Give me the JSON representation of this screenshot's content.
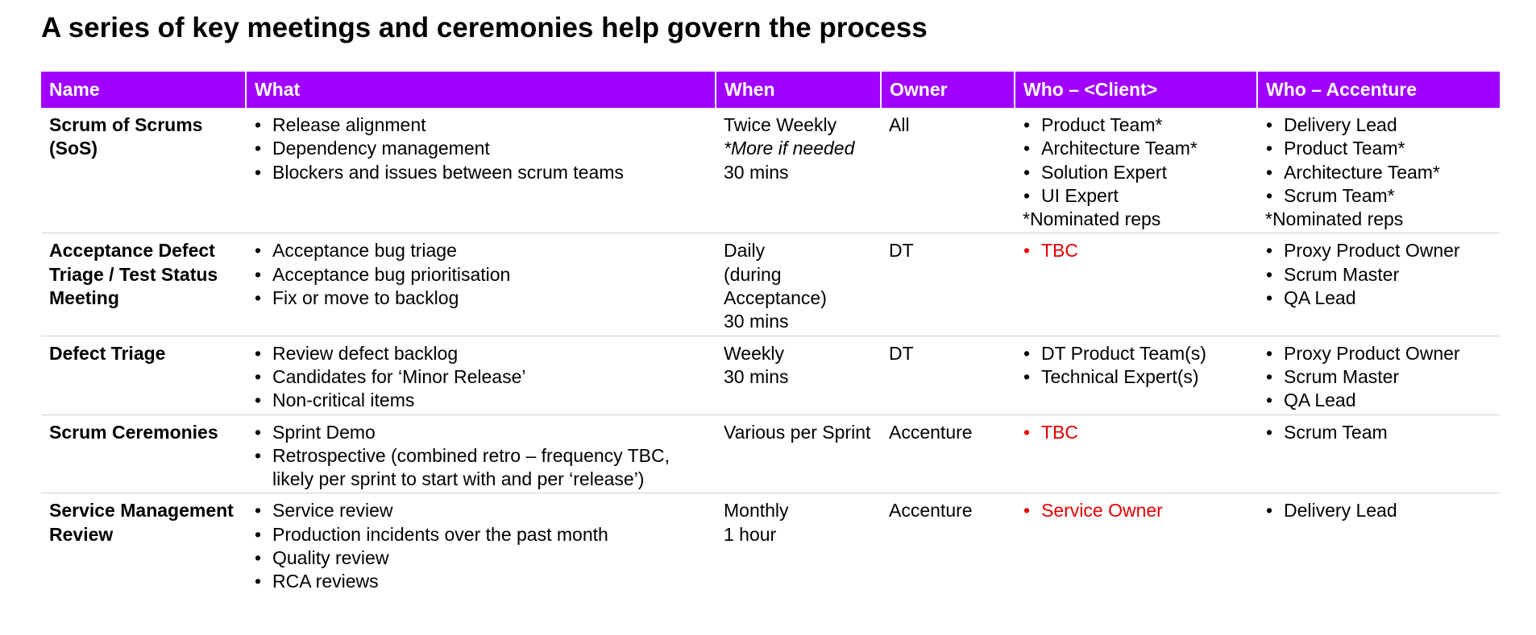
{
  "title": "A series of key meetings and ceremonies help govern the process",
  "colors": {
    "header_bg": "#a100ff",
    "header_text": "#ffffff",
    "tbc_red": "#e60000",
    "row_divider": "#d0d0d0"
  },
  "table": {
    "headers": {
      "name": "Name",
      "what": "What",
      "when": "When",
      "owner": "Owner",
      "who_client": "Who – <Client>",
      "who_accenture": "Who – Accenture"
    },
    "rows": [
      {
        "name": "Scrum of Scrums (SoS)",
        "what": [
          "Release alignment",
          "Dependency management",
          "Blockers and issues between scrum teams"
        ],
        "when": {
          "line1": "Twice Weekly",
          "italic": "*More if needed",
          "line2": "30 mins"
        },
        "owner": "All",
        "who_client": [
          "Product Team*",
          "Architecture Team*",
          "Solution Expert",
          "UI Expert"
        ],
        "who_client_note": "*Nominated reps",
        "who_accenture": [
          "Delivery Lead",
          "Product Team*",
          "Architecture Team*",
          "Scrum Team*"
        ],
        "who_accenture_note": "*Nominated reps"
      },
      {
        "name": "Acceptance Defect Triage / Test Status Meeting",
        "what": [
          "Acceptance bug triage",
          "Acceptance bug prioritisation",
          "Fix or move to backlog"
        ],
        "when": {
          "line1": "Daily",
          "line2": "(during Acceptance)",
          "line3": "30 mins"
        },
        "owner": "DT",
        "who_client": [
          "TBC"
        ],
        "who_accenture": [
          "Proxy Product Owner",
          "Scrum Master",
          "QA Lead"
        ]
      },
      {
        "name": "Defect Triage",
        "what": [
          "Review defect backlog",
          "Candidates for ‘Minor Release’",
          "Non-critical items"
        ],
        "when": {
          "line1": "Weekly",
          "line2": "30 mins"
        },
        "owner": "DT",
        "who_client": [
          "DT Product Team(s)",
          "Technical Expert(s)"
        ],
        "who_accenture": [
          "Proxy Product Owner",
          "Scrum Master",
          "QA Lead"
        ]
      },
      {
        "name": "Scrum Ceremonies",
        "what": [
          "Sprint Demo",
          "Retrospective (combined retro – frequency TBC, likely per sprint to start with and per ‘release’)"
        ],
        "when": {
          "line1": "Various per Sprint"
        },
        "owner": "Accenture",
        "who_client": [
          "TBC"
        ],
        "who_accenture": [
          "Scrum Team"
        ]
      },
      {
        "name": "Service Management Review",
        "what": [
          "Service review",
          "Production incidents over the past month",
          "Quality review",
          "RCA reviews"
        ],
        "when": {
          "line1": "Monthly",
          "line2": "1 hour"
        },
        "owner": "Accenture",
        "who_client": [
          "Service Owner"
        ],
        "who_accenture": [
          "Delivery Lead"
        ]
      }
    ]
  }
}
